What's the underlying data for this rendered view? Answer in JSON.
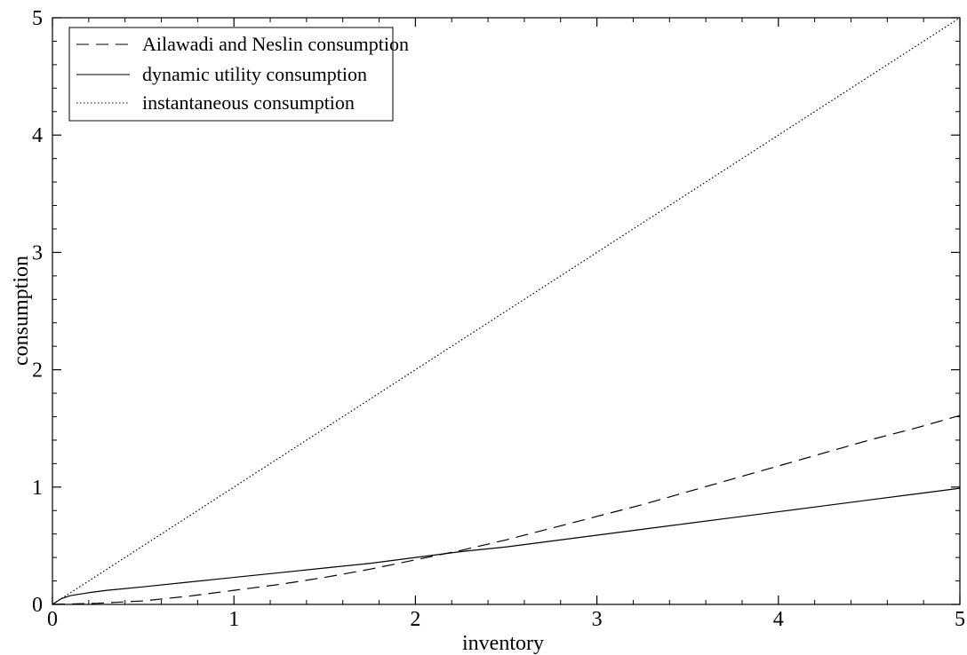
{
  "chart_data": {
    "type": "line",
    "title": "",
    "xlabel": "inventory",
    "ylabel": "consumption",
    "xlim": [
      0,
      5
    ],
    "ylim": [
      0,
      5
    ],
    "xticks": [
      "0",
      "1",
      "2",
      "3",
      "4",
      "5"
    ],
    "yticks": [
      "0",
      "1",
      "2",
      "3",
      "4",
      "5"
    ],
    "grid": false,
    "legend_position": "top-left",
    "series": [
      {
        "name": "Ailawadi and Neslin consumption",
        "style": "dashed",
        "color": "#000000",
        "x": [
          0,
          0.25,
          0.5,
          0.75,
          1,
          1.25,
          1.5,
          1.75,
          2,
          2.25,
          2.5,
          2.75,
          3,
          3.25,
          3.5,
          3.75,
          4,
          4.25,
          4.5,
          4.75,
          5
        ],
        "y": [
          0,
          0.01,
          0.03,
          0.07,
          0.12,
          0.17,
          0.23,
          0.3,
          0.38,
          0.46,
          0.55,
          0.65,
          0.75,
          0.85,
          0.96,
          1.07,
          1.18,
          1.29,
          1.4,
          1.5,
          1.61
        ]
      },
      {
        "name": "dynamic utility consumption",
        "style": "solid",
        "color": "#000000",
        "x": [
          0,
          0.05,
          0.1,
          0.2,
          0.3,
          0.5,
          0.75,
          1,
          1.25,
          1.5,
          1.75,
          2,
          2.25,
          2.5,
          2.75,
          3,
          3.25,
          3.5,
          3.75,
          4,
          4.25,
          4.5,
          4.75,
          5
        ],
        "y": [
          0,
          0.05,
          0.075,
          0.1,
          0.12,
          0.15,
          0.19,
          0.23,
          0.27,
          0.31,
          0.35,
          0.4,
          0.45,
          0.49,
          0.54,
          0.59,
          0.64,
          0.69,
          0.74,
          0.79,
          0.84,
          0.89,
          0.94,
          0.99
        ]
      },
      {
        "name": "instantaneous consumption",
        "style": "dotted",
        "color": "#000000",
        "x": [
          0,
          5
        ],
        "y": [
          0,
          5
        ]
      }
    ]
  }
}
